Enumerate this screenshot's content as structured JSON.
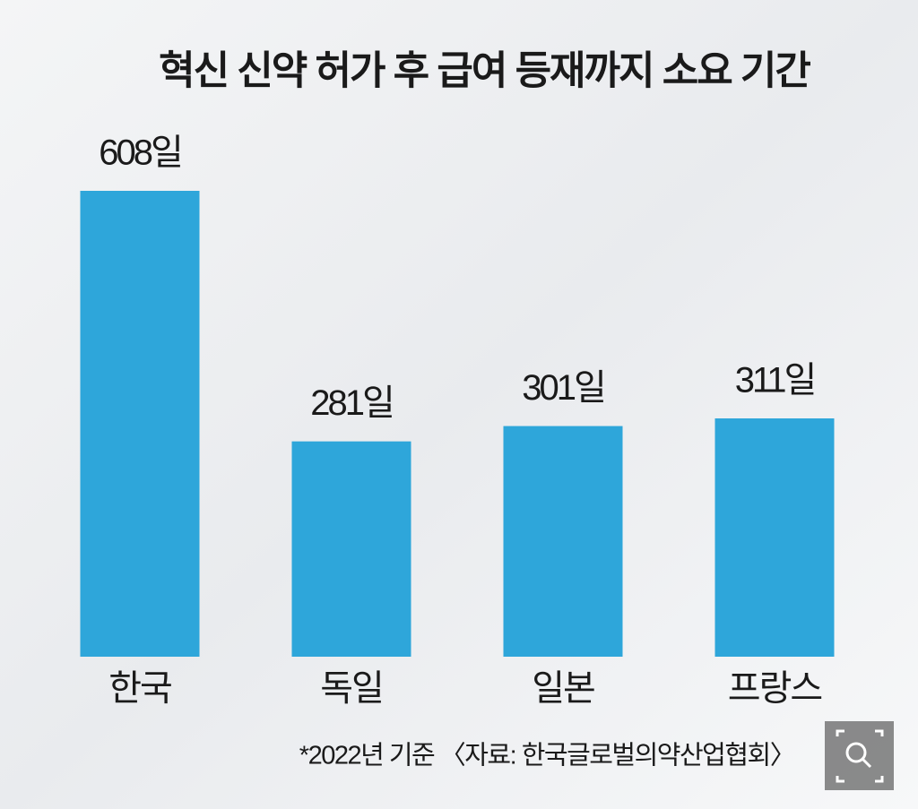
{
  "chart_data": {
    "type": "bar",
    "title": "혁신 신약 허가 후 급여 등재까지 소요 기간",
    "categories": [
      "한국",
      "독일",
      "일본",
      "프랑스"
    ],
    "values": [
      608,
      281,
      301,
      311
    ],
    "value_labels": [
      "608일",
      "281일",
      "301일",
      "311일"
    ],
    "color": "#2ea6da",
    "note": "*2022년 기준 〈자료: 한국글로벌의약산업협회〉"
  }
}
